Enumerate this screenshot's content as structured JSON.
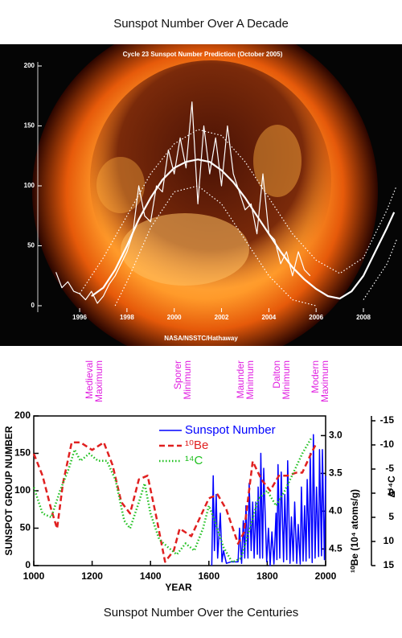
{
  "captions": {
    "top": "Sunspot Number Over A Decade",
    "bottom": "Sunspot Number Over the Centuries"
  },
  "chart_data": [
    {
      "type": "line",
      "title": "Cycle 23 Sunspot Number Prediction (October 2005)",
      "credit": "NASA/NSSTC/Hathaway",
      "xlim": [
        1994.23,
        2009.53
      ],
      "xticks": [
        1996,
        1998,
        2000,
        2002,
        2004,
        2006,
        2008
      ],
      "ylim": [
        0,
        200
      ],
      "yticks": [
        0,
        50,
        100,
        150,
        200
      ],
      "series": [
        {
          "color": "#ffffff",
          "style": "solid",
          "width": 1.2,
          "x": [
            1995.0,
            1995.25,
            1995.5,
            1995.75,
            1996.0,
            1996.25,
            1996.5,
            1996.75,
            1997.0,
            1997.25,
            1997.5,
            1997.75,
            1998.0,
            1998.25,
            1998.5,
            1998.75,
            1999.0,
            1999.25,
            1999.5,
            1999.75,
            2000.0,
            2000.25,
            2000.5,
            2000.75,
            2001.0,
            2001.25,
            2001.5,
            2001.75,
            2002.0,
            2002.25,
            2002.5,
            2002.75,
            2003.0,
            2003.25,
            2003.5,
            2003.75,
            2004.0,
            2004.25,
            2004.5,
            2004.75,
            2005.0,
            2005.25,
            2005.5,
            2005.75
          ],
          "values": [
            28,
            15,
            20,
            12,
            10,
            5,
            12,
            2,
            8,
            18,
            25,
            35,
            45,
            60,
            100,
            75,
            70,
            100,
            95,
            130,
            110,
            140,
            115,
            170,
            85,
            150,
            110,
            140,
            100,
            150,
            110,
            95,
            80,
            85,
            60,
            110,
            60,
            55,
            35,
            45,
            25,
            45,
            30,
            25
          ]
        },
        {
          "color": "#ffffff",
          "style": "solid",
          "width": 2.2,
          "x": [
            1996.5,
            1997,
            1997.5,
            1998,
            1998.5,
            1999,
            1999.5,
            2000,
            2000.5,
            2001,
            2001.5,
            2002,
            2002.5,
            2003,
            2003.5,
            2004,
            2004.5,
            2005,
            2005.5,
            2006,
            2006.5,
            2007,
            2007.5,
            2008,
            2008.5,
            2009,
            2009.3
          ],
          "values": [
            8,
            15,
            30,
            50,
            72,
            90,
            105,
            115,
            120,
            122,
            120,
            113,
            103,
            90,
            75,
            60,
            45,
            32,
            22,
            14,
            8,
            6,
            12,
            25,
            45,
            65,
            78
          ]
        },
        {
          "color": "#ffffff",
          "style": "dotted",
          "width": 1.2,
          "x": [
            1996,
            1997,
            1998,
            1999,
            2000,
            2001,
            2002,
            2003,
            2004,
            2005,
            2006,
            2007,
            2008,
            2009,
            2009.4
          ],
          "values": [
            10,
            40,
            75,
            110,
            135,
            147,
            142,
            120,
            90,
            60,
            38,
            27,
            40,
            80,
            100
          ]
        },
        {
          "color": "#ffffff",
          "style": "dotted",
          "width": 1.2,
          "x": [
            1997.5,
            1998,
            1999,
            2000,
            2001,
            2002,
            2003,
            2004,
            2005,
            2006,
            2007.5,
            2008,
            2009,
            2009.4
          ],
          "values": [
            0,
            20,
            65,
            95,
            100,
            85,
            55,
            25,
            5,
            0,
            null,
            5,
            35,
            55
          ]
        }
      ]
    },
    {
      "type": "line",
      "xlabel": "YEAR",
      "ylabel": "SUNSPOT GROUP NUMBER",
      "y2label": "¹⁰Be (10⁴ atoms/g)",
      "y3label": "Δ¹⁴C",
      "xlim": [
        1000,
        2000
      ],
      "xticks": [
        1000,
        1200,
        1400,
        1600,
        1800,
        2000
      ],
      "ylim": [
        0,
        200
      ],
      "yticks": [
        0,
        50,
        100,
        150,
        200
      ],
      "y2lim": [
        4.72,
        2.74
      ],
      "y2ticks": [
        {
          "value": 3,
          "label": "3.0"
        },
        3.5,
        {
          "value": 4,
          "label": "4.0"
        },
        4.5
      ],
      "y3lim": [
        15,
        -16
      ],
      "y3ticks": [
        -15,
        -10,
        -5,
        0,
        5,
        10,
        15
      ],
      "annotations": [
        [
          "Medieval",
          "Maximum"
        ],
        [
          "Sporer",
          "Minimum"
        ],
        [
          "Maunder",
          "Minimum"
        ],
        [
          "Dalton",
          "Minimum"
        ],
        [
          "Modern",
          "Maximum"
        ]
      ],
      "annotation_color": "#e020e0",
      "series": [
        {
          "name": "Sunspot Number",
          "color": "#0000ff",
          "style": "solid",
          "width": 1.5,
          "axis": "y",
          "x": [
            1610,
            1615,
            1619,
            1625,
            1630,
            1639,
            1645,
            1650,
            1660,
            1675,
            1700,
            1705,
            1712,
            1718,
            1723,
            1727,
            1734,
            1738,
            1745,
            1750,
            1755,
            1761,
            1766,
            1769,
            1775,
            1778,
            1784,
            1788,
            1798,
            1804,
            1810,
            1816,
            1823,
            1830,
            1833,
            1837,
            1843,
            1848,
            1856,
            1860,
            1867,
            1870,
            1878,
            1883,
            1889,
            1894,
            1901,
            1906,
            1913,
            1917,
            1923,
            1928,
            1933,
            1937,
            1944,
            1947,
            1954,
            1958,
            1964,
            1969,
            1976,
            1979,
            1986,
            1989,
            1996,
            2000
          ],
          "values": [
            0,
            120,
            20,
            95,
            10,
            70,
            5,
            20,
            3,
            5,
            5,
            50,
            3,
            60,
            10,
            80,
            10,
            110,
            20,
            85,
            10,
            85,
            15,
            105,
            10,
            150,
            10,
            130,
            5,
            50,
            0,
            45,
            2,
            70,
            8,
            135,
            10,
            125,
            5,
            95,
            8,
            140,
            3,
            65,
            6,
            85,
            3,
            55,
            2,
            105,
            6,
            80,
            6,
            115,
            10,
            150,
            4,
            175,
            10,
            105,
            12,
            155,
            13,
            155,
            8,
            120
          ]
        },
        {
          "name": "¹⁰Be",
          "color": "#e02020",
          "style": "dashed",
          "width": 2.5,
          "axis": "y2",
          "x": [
            1000,
            1030,
            1060,
            1080,
            1100,
            1130,
            1160,
            1200,
            1240,
            1270,
            1300,
            1330,
            1360,
            1390,
            1420,
            1450,
            1480,
            1500,
            1540,
            1570,
            1600,
            1630,
            1660,
            1700,
            1720,
            1750,
            1780,
            1810,
            1840,
            1870,
            1900,
            1920,
            1950,
            1970
          ],
          "values": [
            3.24,
            3.53,
            3.98,
            4.23,
            3.63,
            3.09,
            3.09,
            3.19,
            3.09,
            3.39,
            3.88,
            4.03,
            3.58,
            3.53,
            4.08,
            4.67,
            4.52,
            4.23,
            4.33,
            4.08,
            3.83,
            3.78,
            3.98,
            4.43,
            4.28,
            3.34,
            3.58,
            3.73,
            3.53,
            3.53,
            3.49,
            3.49,
            3.24,
            3.09
          ]
        },
        {
          "name": "¹⁴C",
          "color": "#20c020",
          "style": "dotted",
          "width": 2.5,
          "axis": "y3",
          "x": [
            1000,
            1030,
            1060,
            1090,
            1120,
            1140,
            1160,
            1190,
            1220,
            1250,
            1280,
            1310,
            1330,
            1360,
            1380,
            1400,
            1430,
            1460,
            1490,
            1520,
            1550,
            1580,
            1600,
            1620,
            1650,
            1680,
            1710,
            1740,
            1770,
            1800,
            1830,
            1860,
            1890,
            1920,
            1950
          ],
          "values": [
            -1.2,
            4.2,
            5.0,
            -0.5,
            -5.1,
            -9.0,
            -6.7,
            -8.2,
            -6.7,
            -6.7,
            -2.8,
            5.7,
            7.3,
            1.9,
            -2.0,
            4.2,
            9.6,
            11.2,
            12.7,
            10.4,
            11.9,
            7.3,
            2.6,
            5.7,
            11.2,
            14.3,
            13.5,
            7.3,
            1.1,
            -0.5,
            2.6,
            -0.5,
            -4.3,
            -8.2,
            -11.3
          ]
        }
      ]
    }
  ]
}
